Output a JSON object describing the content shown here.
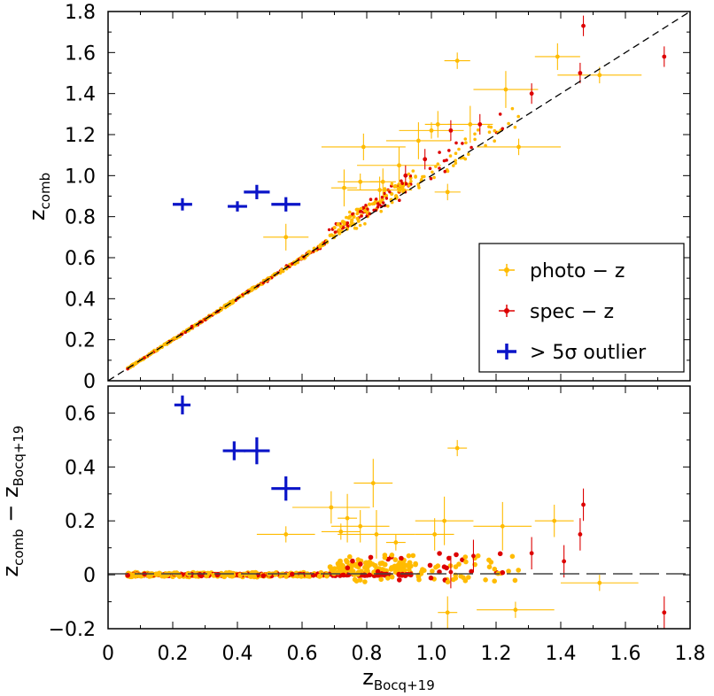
{
  "chart_data": [
    {
      "type": "scatter",
      "panel": "top",
      "xlim": [
        0,
        1.8
      ],
      "ylim": [
        0,
        1.8
      ],
      "yticks": [
        0,
        0.2,
        0.4,
        0.6,
        0.8,
        1.0,
        1.2,
        1.4,
        1.6,
        1.8
      ],
      "ytick_labels": [
        "0",
        "0.2",
        "0.4",
        "0.6",
        "0.8",
        "1.0",
        "1.2",
        "1.4",
        "1.6",
        "1.8"
      ],
      "ylabel_main": "z",
      "ylabel_sub": "comb",
      "reference_line": "y = x",
      "legend": {
        "placement": "lower-right",
        "entries": [
          {
            "label": "photo − z",
            "color": "#ffbb00"
          },
          {
            "label": "spec − z",
            "color": "#dd0000"
          },
          {
            "label": "> 5σ outlier",
            "color": "#0a14c8"
          }
        ]
      },
      "series": [
        {
          "name": "photo-z",
          "color": "#ffbb00",
          "points": [
            [
              1.08,
              1.56
            ],
            [
              1.39,
              1.58
            ],
            [
              1.23,
              1.42
            ],
            [
              1.27,
              1.14
            ],
            [
              1.02,
              1.25
            ],
            [
              1.12,
              1.25
            ],
            [
              1.0,
              1.22
            ],
            [
              0.79,
              1.14
            ],
            [
              0.73,
              0.94
            ],
            [
              0.78,
              0.97
            ],
            [
              0.84,
              0.93
            ],
            [
              0.9,
              1.05
            ],
            [
              1.05,
              0.92
            ],
            [
              0.55,
              0.7
            ],
            [
              0.96,
              1.17
            ],
            [
              1.52,
              1.49
            ],
            [
              0.85,
              0.97
            ]
          ]
        },
        {
          "name": "spec-z",
          "color": "#dd0000",
          "points": [
            [
              1.47,
              1.73
            ],
            [
              1.72,
              1.58
            ],
            [
              1.31,
              1.4
            ],
            [
              1.46,
              1.5
            ],
            [
              1.06,
              1.22
            ],
            [
              1.15,
              1.25
            ],
            [
              0.98,
              1.08
            ],
            [
              0.92,
              1.0
            ]
          ]
        },
        {
          "name": "outlier",
          "color": "#0a14c8",
          "points": [
            [
              0.23,
              0.86
            ],
            [
              0.4,
              0.85
            ],
            [
              0.46,
              0.92
            ],
            [
              0.55,
              0.86
            ]
          ]
        }
      ]
    },
    {
      "type": "scatter",
      "panel": "bottom",
      "xlim": [
        0,
        1.8
      ],
      "ylim": [
        -0.2,
        0.7
      ],
      "xticks": [
        0,
        0.2,
        0.4,
        0.6,
        0.8,
        1.0,
        1.2,
        1.4,
        1.6,
        1.8
      ],
      "xtick_labels": [
        "0",
        "0.2",
        "0.4",
        "0.6",
        "0.8",
        "1.0",
        "1.2",
        "1.4",
        "1.6",
        "1.8"
      ],
      "yticks": [
        -0.2,
        0,
        0.2,
        0.4,
        0.6
      ],
      "ytick_labels": [
        "−0.2",
        "0",
        "0.2",
        "0.4",
        "0.6"
      ],
      "xlabel_main": "z",
      "xlabel_sub": "Bocq+19",
      "ylabel_main1": "z",
      "ylabel_sub1": "comb",
      "ylabel_op": " − ",
      "ylabel_main2": "z",
      "ylabel_sub2": "Bocq+19",
      "reference_line": "y = 0",
      "series": [
        {
          "name": "photo-z",
          "color": "#ffbb00",
          "points": [
            [
              1.08,
              0.47
            ],
            [
              1.38,
              0.2
            ],
            [
              1.22,
              0.18
            ],
            [
              1.26,
              -0.13
            ],
            [
              1.05,
              -0.14
            ],
            [
              0.82,
              0.34
            ],
            [
              0.55,
              0.15
            ],
            [
              0.69,
              0.25
            ],
            [
              0.74,
              0.21
            ],
            [
              0.72,
              0.16
            ],
            [
              0.78,
              0.18
            ],
            [
              0.83,
              0.15
            ],
            [
              0.89,
              0.12
            ],
            [
              1.01,
              0.15
            ],
            [
              1.04,
              0.2
            ],
            [
              1.52,
              -0.03
            ]
          ]
        },
        {
          "name": "spec-z",
          "color": "#dd0000",
          "points": [
            [
              1.47,
              0.26
            ],
            [
              1.46,
              0.15
            ],
            [
              1.72,
              -0.14
            ],
            [
              1.31,
              0.08
            ],
            [
              1.41,
              0.05
            ],
            [
              1.13,
              0.07
            ],
            [
              1.06,
              0.01
            ]
          ]
        },
        {
          "name": "outlier",
          "color": "#0a14c8",
          "points": [
            [
              0.23,
              0.63
            ],
            [
              0.39,
              0.46
            ],
            [
              0.46,
              0.46
            ],
            [
              0.55,
              0.32
            ]
          ]
        }
      ]
    }
  ]
}
